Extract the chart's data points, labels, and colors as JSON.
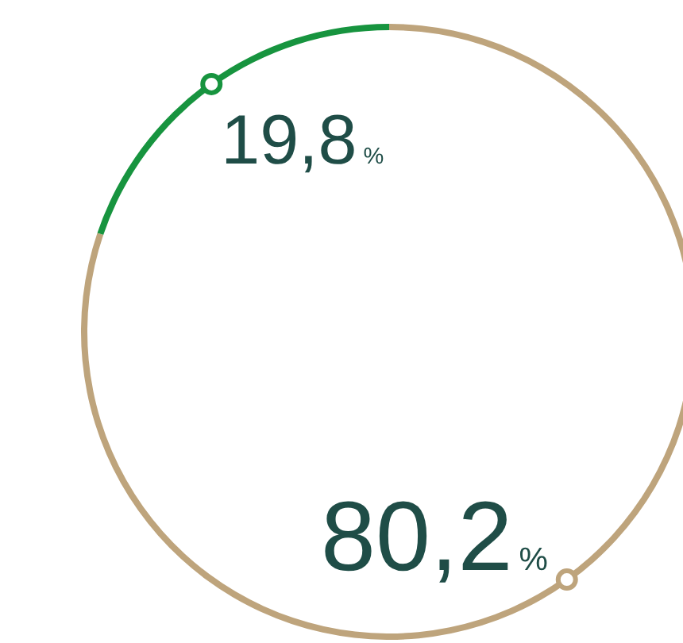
{
  "chart_data": {
    "type": "donut",
    "categories": [
      null,
      null
    ],
    "values": [
      19.8,
      80.2
    ],
    "colors": [
      "#17943f",
      "#bea47c"
    ],
    "value_labels": [
      "19,8%",
      "80,2%"
    ]
  }
}
